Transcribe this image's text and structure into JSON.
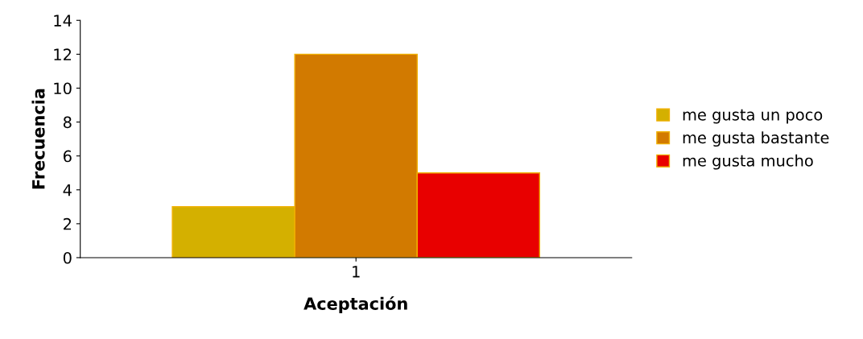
{
  "chart_data": {
    "type": "bar",
    "xlabel": "Aceptación",
    "ylabel": "Frecuencia",
    "categories": [
      "1"
    ],
    "series": [
      {
        "name": "me gusta un poco",
        "color": "#d4b000",
        "values": [
          3
        ]
      },
      {
        "name": "me gusta bastante",
        "color": "#d27a00",
        "values": [
          12
        ]
      },
      {
        "name": "me gusta mucho",
        "color": "#e80000",
        "values": [
          5
        ]
      }
    ],
    "ylim": [
      0,
      14
    ],
    "yticks": [
      0,
      2,
      4,
      6,
      8,
      10,
      12,
      14
    ],
    "grid": false,
    "legend": "right"
  }
}
